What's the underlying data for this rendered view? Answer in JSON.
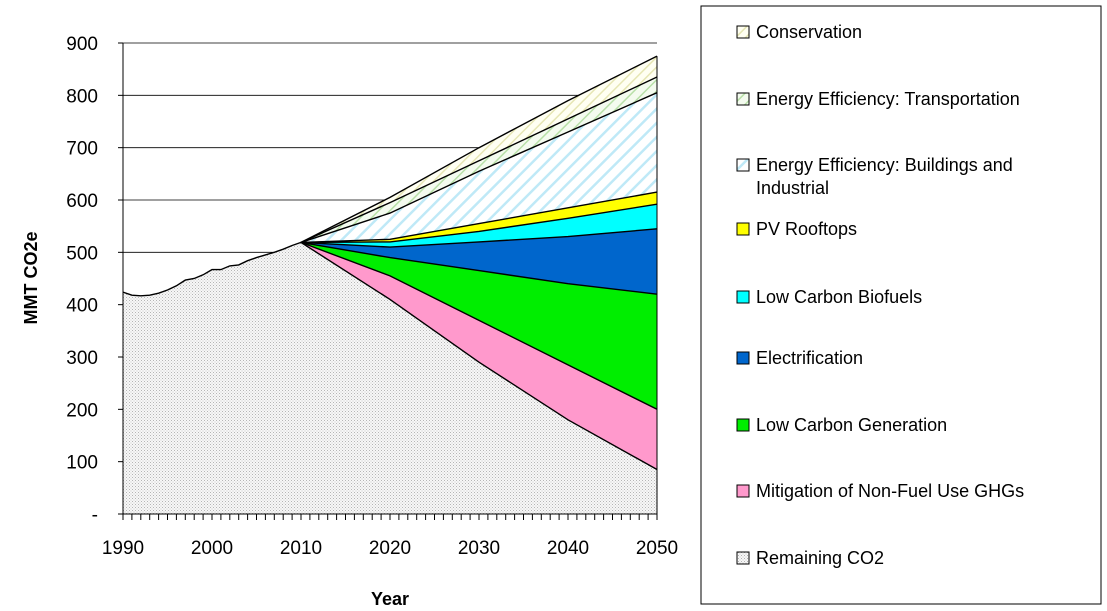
{
  "chart_data": {
    "type": "area",
    "stacked": true,
    "title": "",
    "xlabel": "Year",
    "ylabel": "MMT CO2e",
    "xlim": [
      1990,
      2050
    ],
    "ylim": [
      0,
      900
    ],
    "x_ticks": [
      1990,
      2000,
      2010,
      2020,
      2030,
      2040,
      2050
    ],
    "x_tick_labels": [
      "1990",
      "2000",
      "2010",
      "2020",
      "2030",
      "2040",
      "2050"
    ],
    "y_ticks": [
      0,
      100,
      200,
      300,
      400,
      500,
      600,
      700,
      800,
      900
    ],
    "y_tick_labels": [
      "-",
      "100",
      "200",
      "300",
      "400",
      "500",
      "600",
      "700",
      "800",
      "900"
    ],
    "grid": "horizontal",
    "legend_position": "right",
    "series_order_bottom_to_top": [
      "Remaining CO2",
      "Mitigation of Non-Fuel Use GHGs",
      "Low Carbon Generation",
      "Electrification",
      "Low Carbon Biofuels",
      "PV Rooftops",
      "Energy Efficiency: Buildings and Industrial",
      "Energy Efficiency: Transportation",
      "Conservation"
    ],
    "historical": {
      "x": [
        1990,
        1991,
        1992,
        1993,
        1994,
        1995,
        1996,
        1997,
        1998,
        1999,
        2000,
        2001,
        2002,
        2003,
        2004,
        2005,
        2006,
        2007,
        2008,
        2009,
        2010
      ],
      "y": [
        424,
        418,
        417,
        418,
        422,
        428,
        436,
        447,
        450,
        457,
        467,
        467,
        474,
        476,
        484,
        490,
        495,
        500,
        506,
        513,
        519
      ]
    },
    "projection": {
      "x": [
        2010,
        2020,
        2030,
        2040,
        2050
      ],
      "cumulative_tops": {
        "Remaining CO2": [
          519,
          410,
          290,
          180,
          85
        ],
        "Mitigation of Non-Fuel Use GHGs": [
          519,
          455,
          370,
          285,
          200
        ],
        "Low Carbon Generation": [
          519,
          490,
          465,
          440,
          420
        ],
        "Electrification": [
          519,
          510,
          520,
          530,
          545
        ],
        "Low Carbon Biofuels": [
          519,
          520,
          540,
          565,
          592
        ],
        "PV Rooftops": [
          519,
          525,
          555,
          585,
          615
        ],
        "Energy Efficiency: Buildings and Industrial": [
          519,
          575,
          655,
          730,
          805
        ],
        "Energy Efficiency: Transportation": [
          519,
          595,
          675,
          755,
          835
        ],
        "Conservation": [
          519,
          605,
          700,
          790,
          875
        ]
      }
    },
    "legend": [
      {
        "name": "Conservation",
        "swatch": "#ffffd8",
        "pattern": "hatch-conservation"
      },
      {
        "name": "Energy Efficiency: Transportation",
        "swatch": "#e8f5e0",
        "pattern": "hatch-transport"
      },
      {
        "name": "Energy Efficiency: Buildings and",
        "name_line2": "Industrial",
        "swatch": "#e8f8ff",
        "pattern": "hatch-buildings"
      },
      {
        "name": "PV Rooftops",
        "swatch": "#ffff00"
      },
      {
        "name": "Low Carbon Biofuels",
        "swatch": "#00ffff"
      },
      {
        "name": "Electrification",
        "swatch": "#0066cc"
      },
      {
        "name": "Low Carbon Generation",
        "swatch": "#00ee00"
      },
      {
        "name": "Mitigation of Non-Fuel Use GHGs",
        "swatch": "#ff99cc"
      },
      {
        "name": "Remaining CO2",
        "swatch": "#e4e4e4",
        "pattern": "dots-remaining"
      }
    ]
  }
}
